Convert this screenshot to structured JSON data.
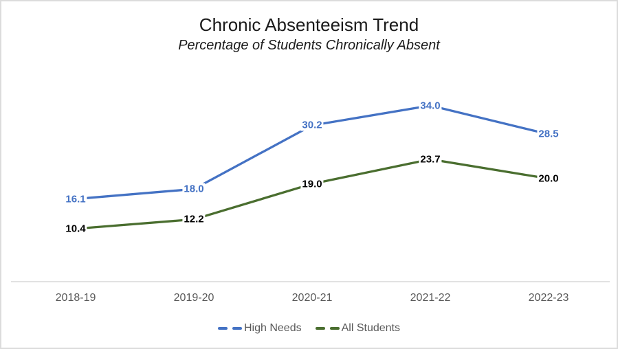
{
  "chart_data": {
    "type": "line",
    "title": "Chronic Absenteeism Trend",
    "subtitle": "Percentage of Students Chronically Absent",
    "categories": [
      "2018-19",
      "2019-20",
      "2020-21",
      "2021-22",
      "2022-23"
    ],
    "series": [
      {
        "name": "High Needs",
        "color": "#4472C4",
        "label_color": "#4472C4",
        "values": [
          16.1,
          18.0,
          30.2,
          34.0,
          28.5
        ]
      },
      {
        "name": "All Students",
        "color": "#4A6E2F",
        "label_color": "#000000",
        "values": [
          10.4,
          12.2,
          19.0,
          23.7,
          20.0
        ]
      }
    ],
    "ylim": [
      0,
      40
    ],
    "grid": false,
    "y_axis_visible": false,
    "data_labels": true,
    "label_decimals": 1,
    "label_position": "center",
    "legend_position": "bottom",
    "axis_color": "#D9D9D9",
    "tick_color": "#595959",
    "legend_text_color": "#595959",
    "background_color": "#FFFFFF",
    "border_color": "#DCDCDC"
  }
}
